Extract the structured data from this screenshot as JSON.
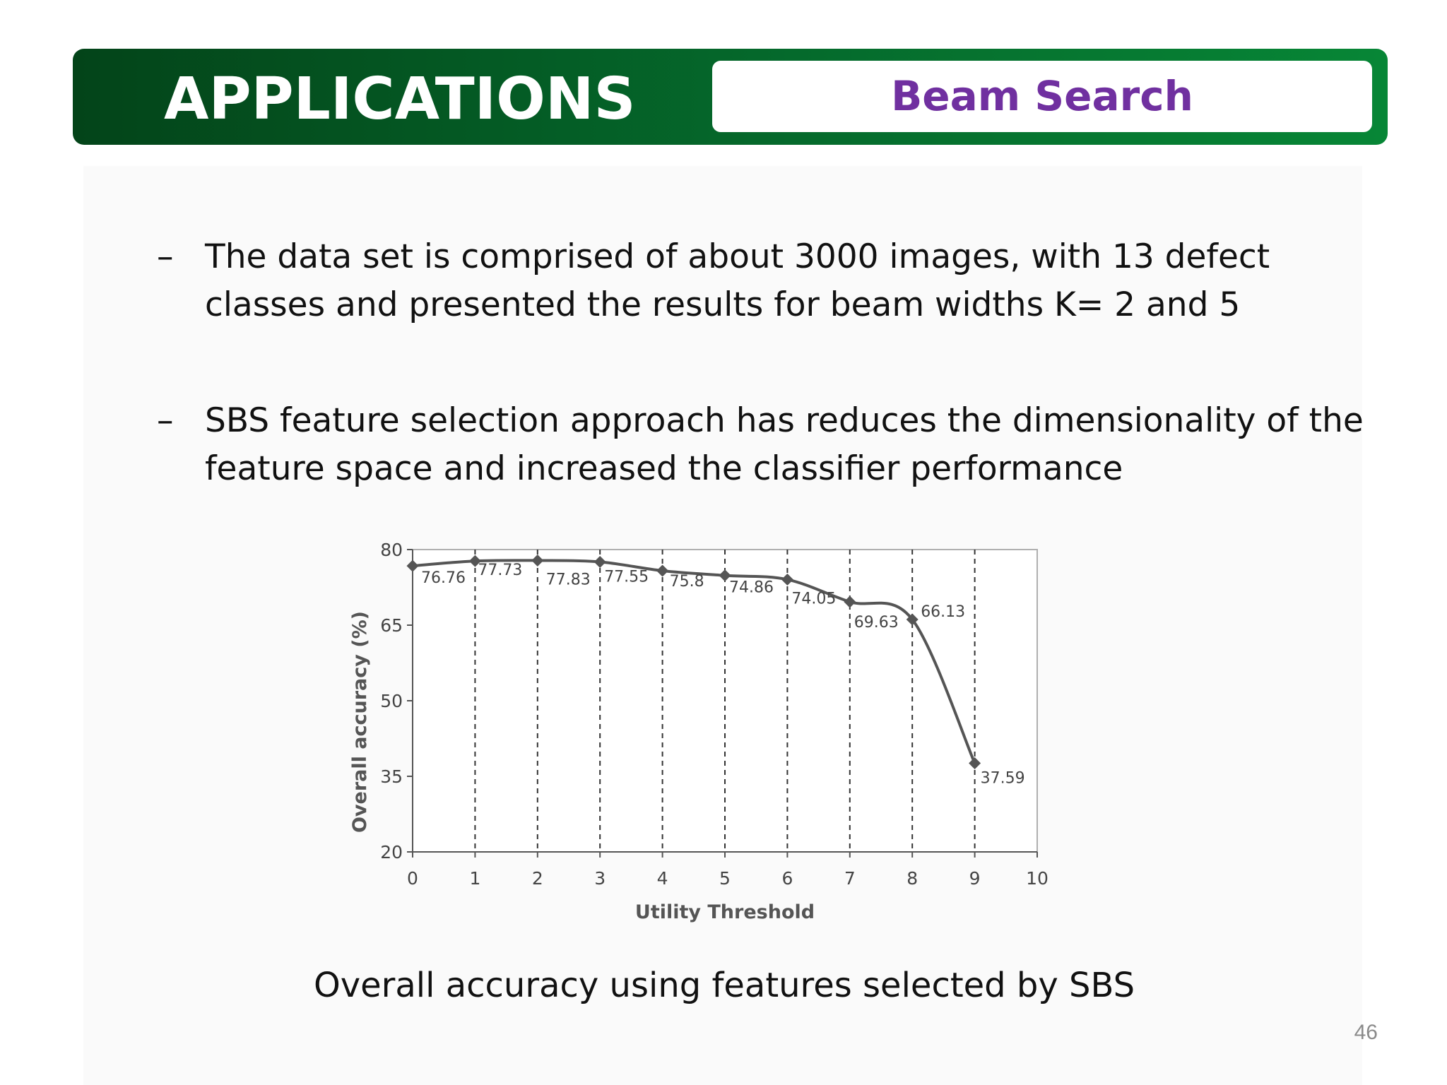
{
  "header": {
    "title": "APPLICATIONS",
    "subtitle": "Beam Search"
  },
  "bullets": [
    {
      "dash": "–",
      "text": "The data set is comprised of about 3000 images, with 13 defect classes and presented the results for beam widths K= 2 and 5"
    },
    {
      "dash": "–",
      "text": "SBS feature selection approach has reduces the dimensionality of the feature space and increased the classifier performance"
    }
  ],
  "caption": "Overall accuracy using features selected by SBS",
  "page_number": "46",
  "colors": {
    "header_dark": "#034419",
    "header_light": "#078636",
    "subtitle": "#7030a0",
    "series_line": "#555555"
  },
  "chart_data": {
    "type": "line",
    "title": "",
    "xlabel": "Utility Threshold",
    "ylabel": "Overall accuracy (%)",
    "xlim": [
      0,
      10
    ],
    "ylim": [
      20,
      80
    ],
    "xticks": [
      "0",
      "1",
      "2",
      "3",
      "4",
      "5",
      "6",
      "7",
      "8",
      "9",
      "10"
    ],
    "yticks": [
      "20",
      "35",
      "50",
      "65",
      "80"
    ],
    "x": [
      0,
      1,
      2,
      3,
      4,
      5,
      6,
      7,
      8,
      9
    ],
    "series": [
      {
        "values": [
          76.76,
          77.73,
          77.83,
          77.55,
          75.8,
          74.86,
          74.05,
          69.63,
          66.13,
          37.59
        ],
        "labels": [
          "76.76",
          "77.73",
          "77.83",
          "77.55",
          "75.8",
          "74.86",
          "74.05",
          "69.63",
          "66.13",
          "37.59"
        ]
      }
    ],
    "vertical_gridlines": "dashed at each data point",
    "legend": "none"
  }
}
